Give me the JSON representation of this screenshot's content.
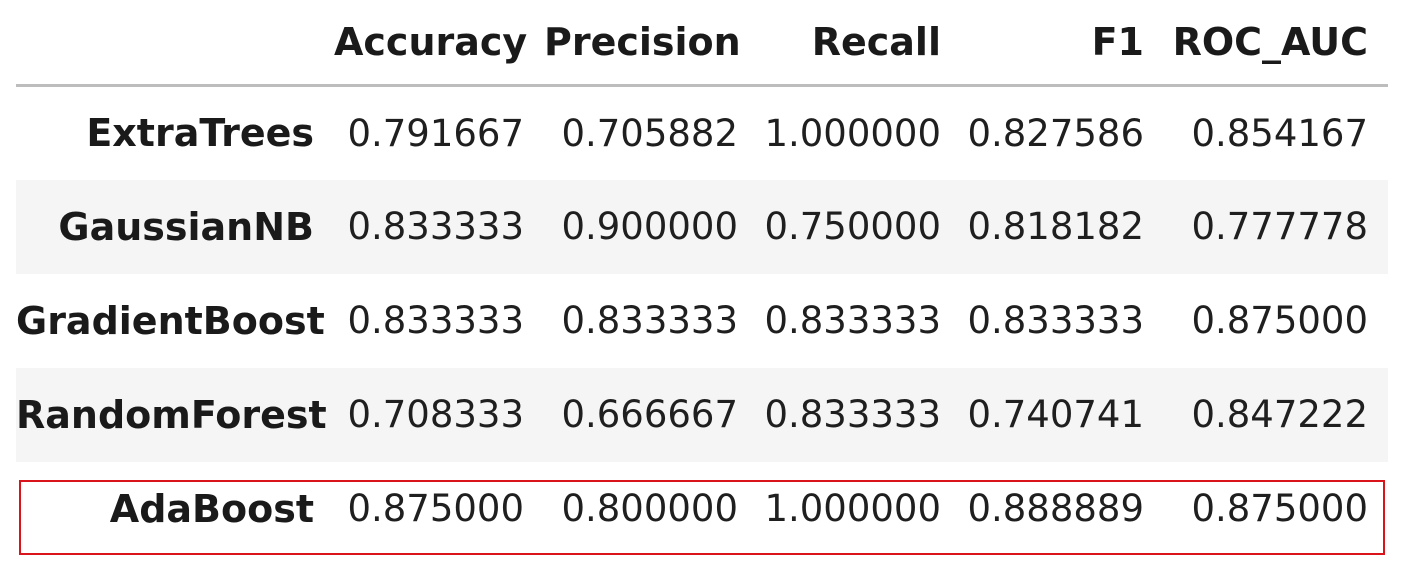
{
  "table": {
    "columns": [
      "Accuracy",
      "Precision",
      "Recall",
      "F1",
      "ROC_AUC"
    ],
    "rows": [
      {
        "label": "ExtraTrees",
        "values": [
          "0.791667",
          "0.705882",
          "1.000000",
          "0.827586",
          "0.854167"
        ]
      },
      {
        "label": "GaussianNB",
        "values": [
          "0.833333",
          "0.900000",
          "0.750000",
          "0.818182",
          "0.777778"
        ]
      },
      {
        "label": "GradientBoost",
        "values": [
          "0.833333",
          "0.833333",
          "0.833333",
          "0.833333",
          "0.875000"
        ]
      },
      {
        "label": "RandomForest",
        "values": [
          "0.708333",
          "0.666667",
          "0.833333",
          "0.740741",
          "0.847222"
        ]
      },
      {
        "label": "AdaBoost",
        "values": [
          "0.875000",
          "0.800000",
          "1.000000",
          "0.888889",
          "0.875000"
        ]
      }
    ],
    "highlighted_row": "AdaBoost"
  },
  "colors": {
    "highlight_border": "#d9141b",
    "stripe": "#f5f5f5",
    "header_rule": "#bdbdbd"
  }
}
